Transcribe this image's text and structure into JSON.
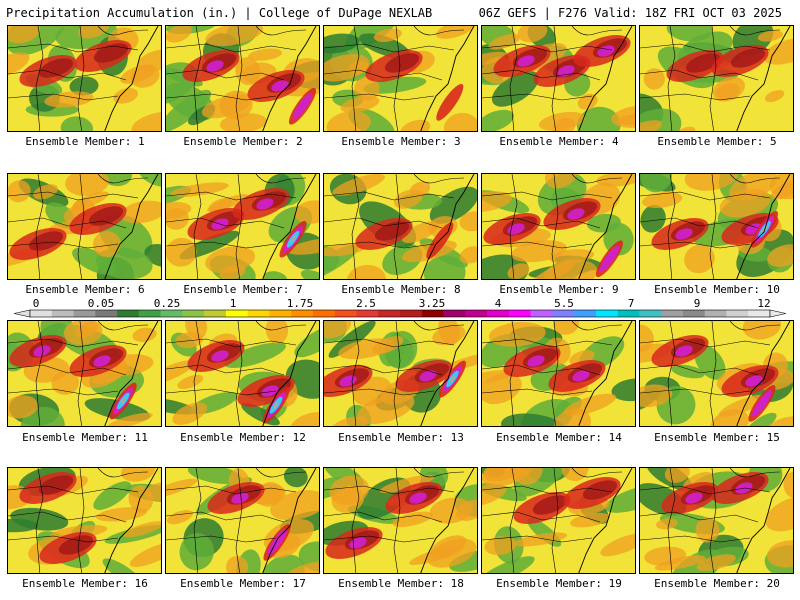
{
  "header": {
    "left_title": "Precipitation Accumulation (in.) | College of DuPage NEXLAB",
    "right_title": "06Z GEFS | F276 Valid: 18Z FRI OCT 03 2025"
  },
  "panels": [
    {
      "label": "Ensemble Member: 1"
    },
    {
      "label": "Ensemble Member: 2"
    },
    {
      "label": "Ensemble Member: 3"
    },
    {
      "label": "Ensemble Member: 4"
    },
    {
      "label": "Ensemble Member: 5"
    },
    {
      "label": "Ensemble Member: 6"
    },
    {
      "label": "Ensemble Member: 7"
    },
    {
      "label": "Ensemble Member: 8"
    },
    {
      "label": "Ensemble Member: 9"
    },
    {
      "label": "Ensemble Member: 10"
    },
    {
      "label": "Ensemble Member: 11"
    },
    {
      "label": "Ensemble Member: 12"
    },
    {
      "label": "Ensemble Member: 13"
    },
    {
      "label": "Ensemble Member: 14"
    },
    {
      "label": "Ensemble Member: 15"
    },
    {
      "label": "Ensemble Member: 16"
    },
    {
      "label": "Ensemble Member: 17"
    },
    {
      "label": "Ensemble Member: 18"
    },
    {
      "label": "Ensemble Member: 19"
    },
    {
      "label": "Ensemble Member: 20"
    }
  ],
  "colorbar": {
    "labels": [
      "0",
      "0.05",
      "0.25",
      "1",
      "1.75",
      "2.5",
      "3.25",
      "4",
      "5.5",
      "7",
      "9",
      "12"
    ],
    "colors": [
      "#e0e0e0",
      "#bdbdbd",
      "#9a9a9a",
      "#7a7a7a",
      "#2e7d32",
      "#43a047",
      "#66bb6a",
      "#8bc34a",
      "#c0ca33",
      "#ffff00",
      "#ffd600",
      "#ffb300",
      "#ff8f00",
      "#ff6f00",
      "#f4511e",
      "#e53935",
      "#c62828",
      "#b71c1c",
      "#8e0000",
      "#a0006a",
      "#c2008f",
      "#e000c8",
      "#ff00ff",
      "#c060ff",
      "#8080ff",
      "#40a0ff",
      "#00e5ff",
      "#00bfc0",
      "#40c0c0",
      "#a0a0a0",
      "#8a8a8a",
      "#b0b0b0",
      "#d0d0d0",
      "#e8e8e8"
    ]
  },
  "map_colors": {
    "green_dark": "#2e7d32",
    "green": "#5fae3a",
    "yellow": "#f2e338",
    "orange": "#f0a020",
    "red": "#d8281c",
    "dark_red": "#a01818",
    "magenta": "#d020d0",
    "cyan": "#28d8f0",
    "gray": "#a8a8a8"
  }
}
